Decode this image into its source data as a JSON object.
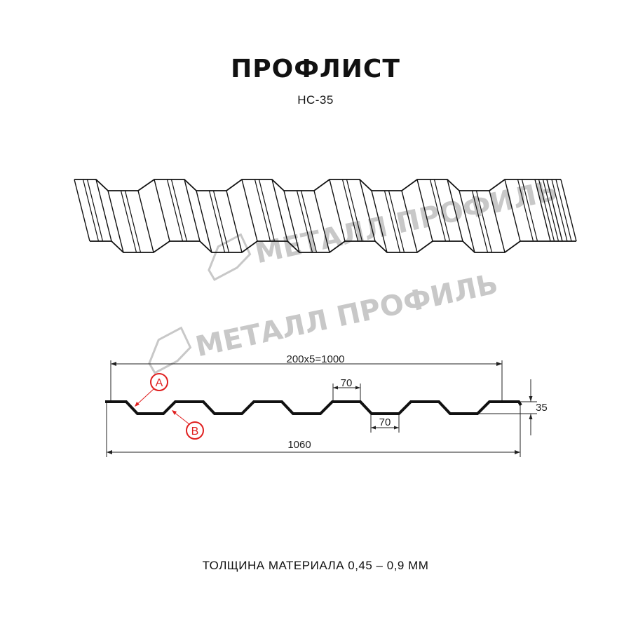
{
  "title": "ПРОФЛИСТ",
  "subtitle": "НС-35",
  "footer": "ТОЛЩИНА МАТЕРИАЛА 0,45 – 0,9 ММ",
  "watermark": "МЕТАЛЛ ПРОФИЛЬ",
  "dimensions": {
    "pitch": "200x5=1000",
    "total_width": "1060",
    "crest_width": "70",
    "valley_width": "70",
    "height": "35"
  },
  "callouts": {
    "a": "A",
    "b": "B"
  },
  "colors": {
    "profile": "#111111",
    "callout": "#e02020",
    "watermark": "#c8c8c8"
  }
}
